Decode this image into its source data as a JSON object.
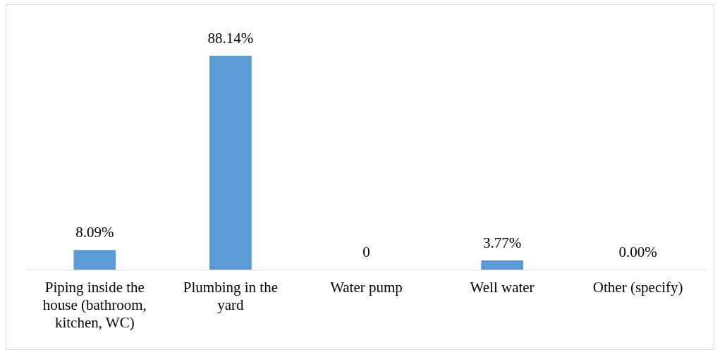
{
  "chart_data": {
    "type": "bar",
    "categories": [
      "Piping inside the house (bathroom, kitchen, WC)",
      "Plumbing in the yard",
      "Water pump",
      "Well water",
      "Other (specify)"
    ],
    "values": [
      8.09,
      88.14,
      0,
      3.77,
      0
    ],
    "value_labels": [
      "8.09%",
      "88.14%",
      "0",
      "3.77%",
      "0.00%"
    ],
    "color": "#5b9bd5"
  }
}
